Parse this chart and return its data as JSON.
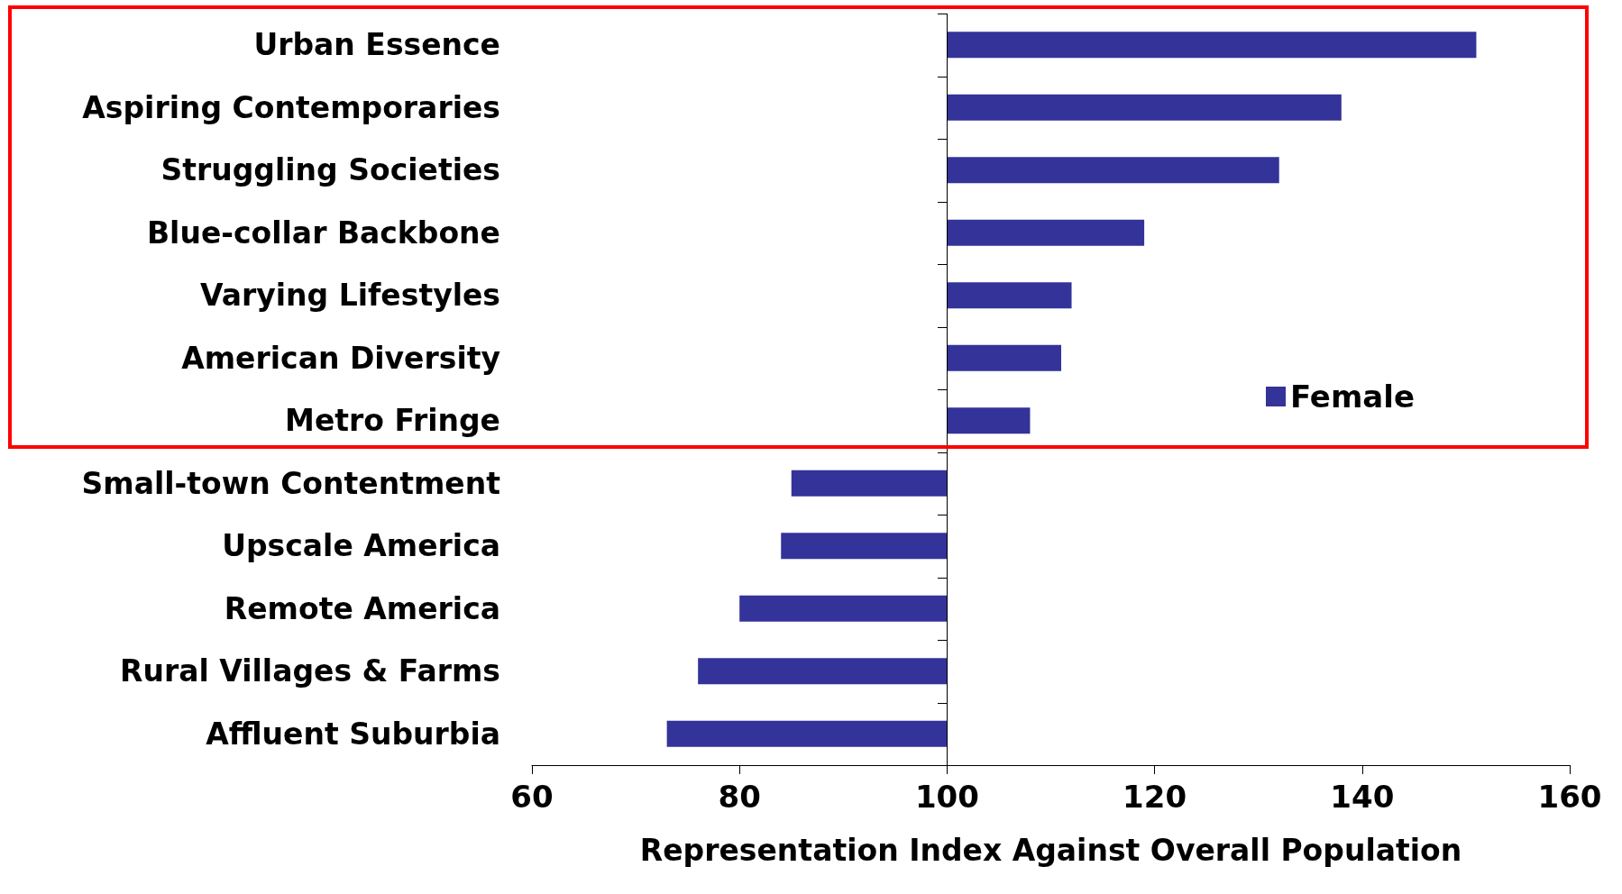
{
  "chart_data": {
    "type": "bar",
    "orientation": "horizontal",
    "categories": [
      "Urban Essence",
      "Aspiring Contemporaries",
      "Struggling Societies",
      "Blue-collar Backbone",
      "Varying Lifestyles",
      "American Diversity",
      "Metro Fringe",
      "Small-town Contentment",
      "Upscale America",
      "Remote America",
      "Rural Villages & Farms",
      "Affluent Suburbia"
    ],
    "series": [
      {
        "name": "Female",
        "color": "#333399",
        "values": [
          51,
          38,
          32,
          19,
          12,
          11,
          8,
          -15,
          -16,
          -20,
          -24,
          -27
        ],
        "base": [
          100,
          100,
          100,
          100,
          100,
          100,
          100,
          100,
          100,
          100,
          100,
          100
        ]
      }
    ],
    "ref_lines": [
      {
        "axis": "x",
        "value": 100,
        "color": "#000000"
      }
    ],
    "xlabel": "Representation Index Against Overall Population",
    "xlim": [
      60,
      160
    ],
    "xticks": [
      60,
      80,
      100,
      120,
      140,
      160
    ],
    "legend": "right",
    "grid": false
  }
}
